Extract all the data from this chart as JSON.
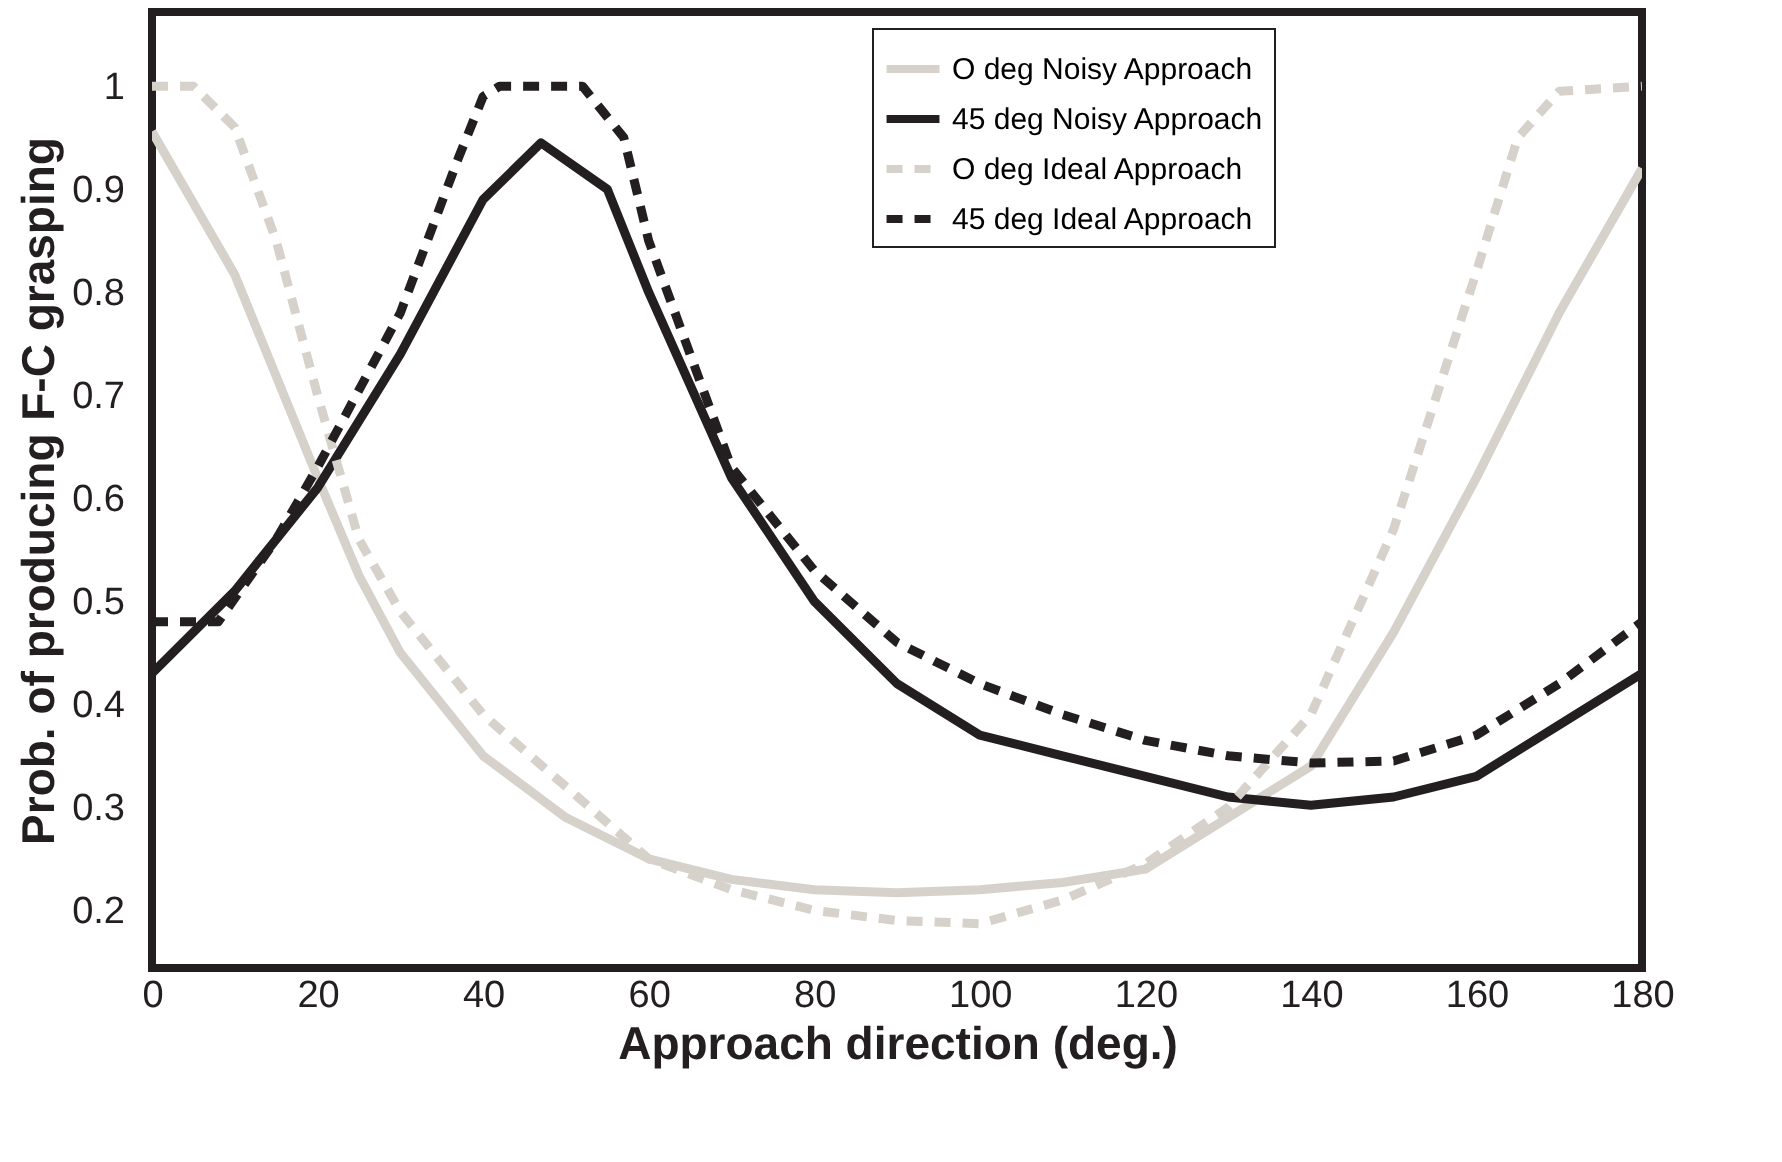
{
  "chart_data": {
    "type": "line",
    "xlabel": "Approach direction (deg.)",
    "ylabel": "Prob. of producing F-C grasping",
    "xlim": [
      0,
      180
    ],
    "xticks": [
      0,
      20,
      40,
      60,
      80,
      100,
      120,
      140,
      160,
      180
    ],
    "ylim": [
      0.144,
      1.072
    ],
    "yticks": [
      0.2,
      0.3,
      0.4,
      0.5,
      0.6,
      0.7,
      0.8,
      0.9,
      {
        "value": 1,
        "label": "1"
      }
    ],
    "grid": false,
    "legend": "top right",
    "marker": "none",
    "series": [
      {
        "name": "O deg  Noisy Approach",
        "color": "#d6d2cb",
        "line_style": "solid",
        "x": [
          0,
          10,
          20,
          25,
          30,
          40,
          50,
          60,
          70,
          80,
          90,
          100,
          110,
          120,
          130,
          140,
          150,
          160,
          170,
          180
        ],
        "values": [
          0.956,
          0.817,
          0.62,
          0.525,
          0.45,
          0.35,
          0.29,
          0.25,
          0.23,
          0.22,
          0.217,
          0.22,
          0.227,
          0.24,
          0.29,
          0.34,
          0.47,
          0.62,
          0.78,
          0.92
        ]
      },
      {
        "name": "45 deg Noisy Approach",
        "color": "#231f20",
        "line_style": "solid",
        "x": [
          0,
          10,
          20,
          30,
          40,
          47,
          55,
          60,
          70,
          80,
          90,
          100,
          110,
          120,
          130,
          140,
          150,
          160,
          170,
          180
        ],
        "values": [
          0.43,
          0.51,
          0.61,
          0.74,
          0.89,
          0.945,
          0.9,
          0.8,
          0.62,
          0.5,
          0.42,
          0.37,
          0.35,
          0.33,
          0.31,
          0.302,
          0.31,
          0.33,
          0.38,
          0.43
        ]
      },
      {
        "name": "O deg  Ideal Approach",
        "color": "#d6d2cb",
        "line_style": "dashed",
        "x": [
          0,
          5,
          10,
          15,
          20,
          25,
          30,
          40,
          50,
          60,
          70,
          80,
          90,
          100,
          110,
          120,
          130,
          140,
          150,
          160,
          165,
          170,
          180
        ],
        "values": [
          1.0,
          1.0,
          0.96,
          0.85,
          0.7,
          0.56,
          0.49,
          0.39,
          0.32,
          0.25,
          0.22,
          0.2,
          0.19,
          0.187,
          0.21,
          0.245,
          0.3,
          0.39,
          0.57,
          0.82,
          0.95,
          0.995,
          1.0
        ]
      },
      {
        "name": "45 deg Ideal Approach",
        "color": "#231f20",
        "line_style": "dashed",
        "x": [
          0,
          8,
          15,
          20,
          30,
          37,
          40,
          42,
          52,
          57,
          60,
          70,
          80,
          90,
          100,
          110,
          120,
          130,
          140,
          150,
          160,
          170,
          180
        ],
        "values": [
          0.48,
          0.48,
          0.56,
          0.63,
          0.78,
          0.93,
          0.99,
          1.0,
          1.0,
          0.95,
          0.85,
          0.63,
          0.53,
          0.46,
          0.42,
          0.39,
          0.365,
          0.35,
          0.343,
          0.345,
          0.37,
          0.42,
          0.48
        ]
      }
    ]
  }
}
